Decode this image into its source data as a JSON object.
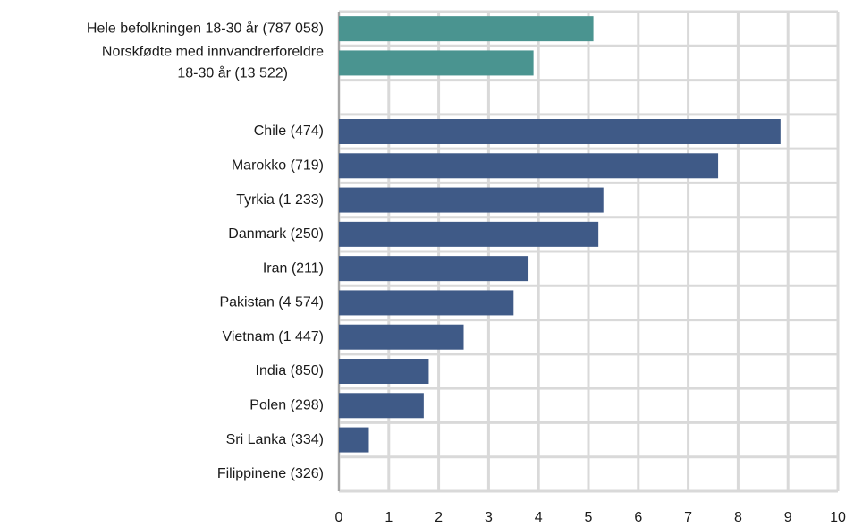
{
  "chart_data": {
    "type": "bar",
    "orientation": "horizontal",
    "categories": [
      "Hele befolkningen 18-30 år (787 058)",
      [
        "Norskfødte med innvandrerforeldre",
        "18-30 år (13 522)"
      ],
      null,
      "Chile (474)",
      "Marokko (719)",
      "Tyrkia (1 233)",
      "Danmark (250)",
      "Iran (211)",
      "Pakistan (4 574)",
      "Vietnam (1 447)",
      "India (850)",
      "Polen (298)",
      "Sri Lanka (334)",
      "Filippinene (326)"
    ],
    "values": [
      5.1,
      3.9,
      null,
      8.85,
      7.6,
      5.3,
      5.2,
      3.8,
      3.5,
      2.5,
      1.8,
      1.7,
      0.6,
      0
    ],
    "colors": [
      "#4a9490",
      "#4a9490",
      null,
      "#3f5a87",
      "#3f5a87",
      "#3f5a87",
      "#3f5a87",
      "#3f5a87",
      "#3f5a87",
      "#3f5a87",
      "#3f5a87",
      "#3f5a87",
      "#3f5a87",
      "#3f5a87"
    ],
    "xlim": [
      0,
      10
    ],
    "xticks": [
      0,
      1,
      2,
      3,
      4,
      5,
      6,
      7,
      8,
      9,
      10
    ],
    "grid": true
  }
}
